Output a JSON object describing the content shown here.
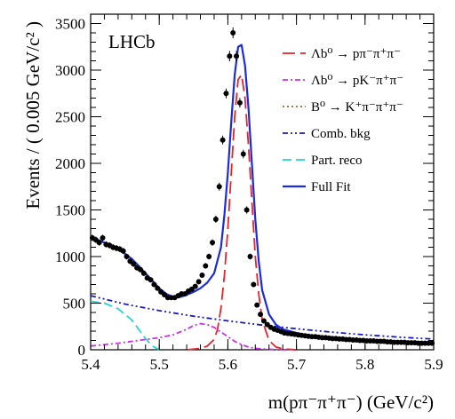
{
  "chart_data": {
    "type": "scatter",
    "experiment_label": "LHCb",
    "xlabel": "m(pπ⁻π⁺π⁻) (GeV/c²)",
    "ylabel": "Events / ( 0.005 GeV/c² )",
    "xlim": [
      5.4,
      5.9
    ],
    "ylim": [
      0,
      3600
    ],
    "x_ticks": [
      5.4,
      5.5,
      5.6,
      5.7,
      5.8,
      5.9
    ],
    "y_ticks": [
      0,
      500,
      1000,
      1500,
      2000,
      2500,
      3000,
      3500
    ],
    "legend_position": "top-right",
    "legend": [
      {
        "label": "Λb⁰ → pπ⁻π⁺π⁻",
        "color": "#e8232a",
        "style": "longdash"
      },
      {
        "label": "Λb⁰ → pK⁻π⁺π⁻",
        "color": "#c832e6",
        "style": "dashdot"
      },
      {
        "label": "B⁰ → K⁺π⁻π⁺π⁻",
        "color": "#9a6a2a",
        "style": "dotted"
      },
      {
        "label": "Comb. bkg",
        "color": "#1a1acc",
        "style": "dashdotdot"
      },
      {
        "label": "Part. reco",
        "color": "#22d4d4",
        "style": "dash"
      },
      {
        "label": "Full Fit",
        "color": "#1a2be0",
        "style": "solid"
      }
    ],
    "data_points": {
      "x": [
        5.4025,
        5.4075,
        5.4125,
        5.4175,
        5.4225,
        5.4275,
        5.4325,
        5.4375,
        5.4425,
        5.4475,
        5.4525,
        5.4575,
        5.4625,
        5.4675,
        5.4725,
        5.4775,
        5.4825,
        5.4875,
        5.4925,
        5.4975,
        5.5025,
        5.5075,
        5.5125,
        5.5175,
        5.5225,
        5.5275,
        5.5325,
        5.5375,
        5.5425,
        5.5475,
        5.5525,
        5.5575,
        5.5625,
        5.5675,
        5.5725,
        5.5775,
        5.5825,
        5.5875,
        5.5925,
        5.5975,
        5.6025,
        5.6075,
        5.6125,
        5.6175,
        5.6225,
        5.6275,
        5.6325,
        5.6375,
        5.6425,
        5.6475,
        5.6525,
        5.6575,
        5.6625,
        5.6675,
        5.6725,
        5.6775,
        5.6825,
        5.6875,
        5.6925,
        5.6975,
        5.7025,
        5.7075,
        5.7125,
        5.7175,
        5.7225,
        5.7275,
        5.7325,
        5.7375,
        5.7425,
        5.7475,
        5.7525,
        5.7575,
        5.7625,
        5.7675,
        5.7725,
        5.7775,
        5.7825,
        5.7875,
        5.7925,
        5.7975,
        5.8025,
        5.8075,
        5.8125,
        5.8175,
        5.8225,
        5.8275,
        5.8325,
        5.8375,
        5.8425,
        5.8475,
        5.8525,
        5.8575,
        5.8625,
        5.8675,
        5.8725,
        5.8775,
        5.8825,
        5.8875,
        5.8925,
        5.8975
      ],
      "y": [
        1200,
        1180,
        1150,
        1200,
        1130,
        1120,
        1100,
        1090,
        1080,
        1060,
        1000,
        950,
        920,
        880,
        860,
        820,
        770,
        750,
        700,
        660,
        620,
        590,
        560,
        560,
        560,
        580,
        600,
        600,
        630,
        650,
        680,
        730,
        800,
        900,
        1000,
        1150,
        1400,
        1750,
        2250,
        2750,
        3150,
        3400,
        3150,
        2650,
        2100,
        1500,
        1000,
        700,
        480,
        380,
        310,
        270,
        240,
        220,
        210,
        195,
        180,
        175,
        170,
        165,
        160,
        155,
        150,
        145,
        140,
        140,
        135,
        130,
        130,
        125,
        120,
        120,
        115,
        115,
        110,
        110,
        105,
        105,
        100,
        100,
        95,
        95,
        95,
        90,
        90,
        90,
        85,
        85,
        80,
        80,
        80,
        80,
        75,
        75,
        75,
        70,
        70,
        70,
        70,
        70
      ]
    },
    "series": [
      {
        "name": "Full Fit",
        "x": [
          5.4,
          5.41,
          5.42,
          5.43,
          5.44,
          5.45,
          5.46,
          5.47,
          5.48,
          5.49,
          5.5,
          5.51,
          5.52,
          5.53,
          5.54,
          5.55,
          5.56,
          5.57,
          5.58,
          5.59,
          5.595,
          5.6,
          5.605,
          5.61,
          5.615,
          5.62,
          5.625,
          5.63,
          5.635,
          5.64,
          5.645,
          5.65,
          5.66,
          5.67,
          5.68,
          5.7,
          5.72,
          5.75,
          5.8,
          5.85,
          5.9
        ],
        "y": [
          1210,
          1180,
          1150,
          1110,
          1075,
          1030,
          975,
          900,
          820,
          740,
          660,
          600,
          565,
          565,
          590,
          620,
          660,
          720,
          820,
          1100,
          1450,
          1900,
          2450,
          2950,
          3250,
          3270,
          3050,
          2600,
          2000,
          1400,
          950,
          640,
          380,
          270,
          220,
          180,
          150,
          125,
          105,
          90,
          78
        ]
      },
      {
        "name": "Λb⁰ → pπ⁻π⁺π⁻",
        "x": [
          5.54,
          5.56,
          5.57,
          5.58,
          5.585,
          5.59,
          5.595,
          5.6,
          5.605,
          5.61,
          5.615,
          5.62,
          5.625,
          5.63,
          5.635,
          5.64,
          5.645,
          5.65,
          5.66,
          5.67,
          5.68,
          5.7
        ],
        "y": [
          0,
          15,
          40,
          110,
          220,
          450,
          800,
          1300,
          1900,
          2500,
          2900,
          2950,
          2700,
          2200,
          1600,
          1000,
          600,
          320,
          100,
          30,
          10,
          0
        ]
      },
      {
        "name": "Λb⁰ → pK⁻π⁺π⁻",
        "x": [
          5.4,
          5.42,
          5.44,
          5.46,
          5.48,
          5.5,
          5.52,
          5.54,
          5.55,
          5.56,
          5.57,
          5.58,
          5.59,
          5.6,
          5.61,
          5.62,
          5.63,
          5.64,
          5.66,
          5.68,
          5.7
        ],
        "y": [
          40,
          55,
          70,
          90,
          110,
          130,
          160,
          220,
          260,
          280,
          270,
          240,
          190,
          140,
          90,
          55,
          30,
          15,
          5,
          2,
          0
        ]
      },
      {
        "name": "Comb. bkg",
        "x": [
          5.4,
          5.45,
          5.5,
          5.55,
          5.6,
          5.65,
          5.7,
          5.75,
          5.8,
          5.85,
          5.9
        ],
        "y": [
          580,
          490,
          420,
          360,
          310,
          265,
          225,
          190,
          160,
          135,
          115
        ]
      },
      {
        "name": "Part. reco",
        "x": [
          5.4,
          5.42,
          5.44,
          5.46,
          5.47,
          5.48,
          5.49,
          5.5
        ],
        "y": [
          520,
          500,
          440,
          320,
          220,
          120,
          40,
          0
        ]
      }
    ]
  }
}
